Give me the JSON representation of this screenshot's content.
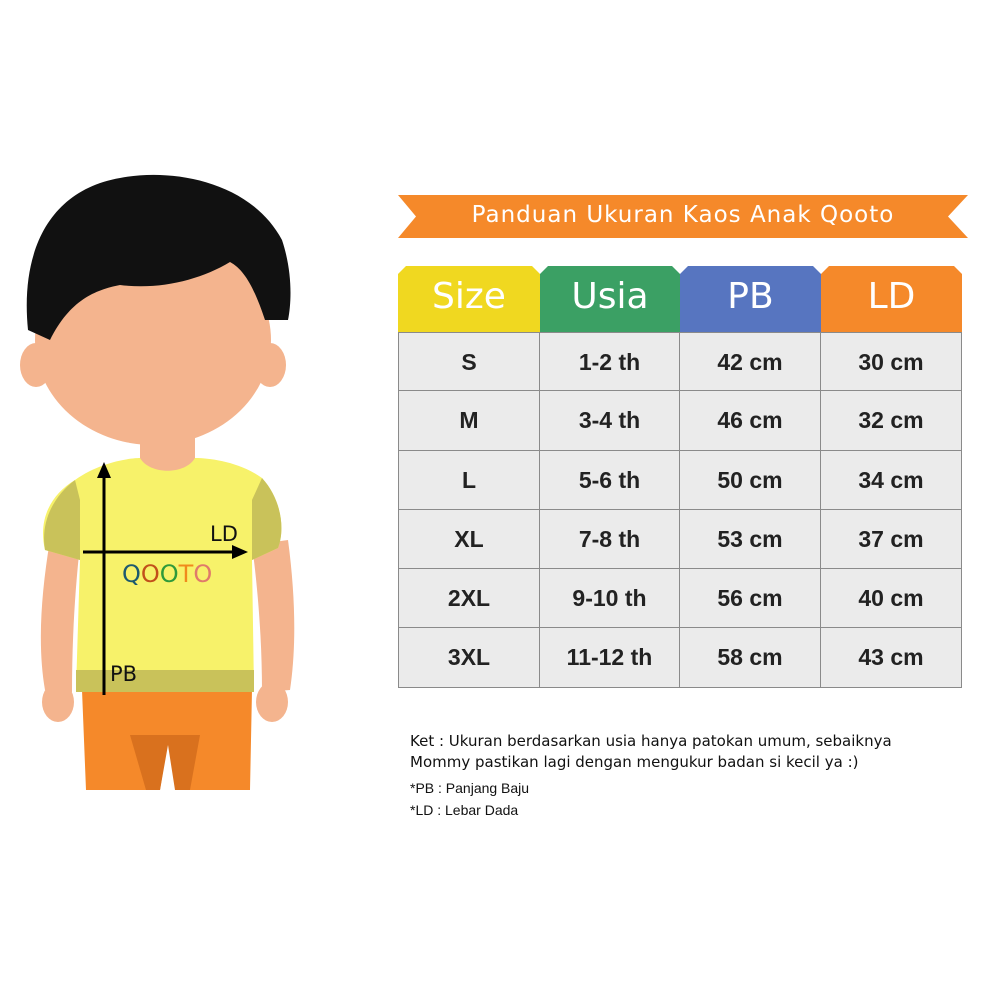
{
  "title": "Panduan Ukuran Kaos Anak Qooto",
  "illustration": {
    "ld_label": "LD",
    "pb_label": "PB",
    "logo_letters": [
      "Q",
      "O",
      "O",
      "T",
      "O"
    ],
    "logo_colors": [
      "#1d5a6e",
      "#c2501a",
      "#2f9a3a",
      "#f08a1c",
      "#e07a6a"
    ],
    "shirt_color": "#f7f26a",
    "shorts_color": "#f5892a"
  },
  "table": {
    "headers": [
      {
        "label": "Size",
        "color": "#f0d820"
      },
      {
        "label": "Usia",
        "color": "#3ba064"
      },
      {
        "label": "PB",
        "color": "#5775c0"
      },
      {
        "label": "LD",
        "color": "#f5892a"
      }
    ],
    "rows": [
      [
        "S",
        "1-2 th",
        "42 cm",
        "30 cm"
      ],
      [
        "M",
        "3-4 th",
        "46 cm",
        "32 cm"
      ],
      [
        "L",
        "5-6 th",
        "50 cm",
        "34 cm"
      ],
      [
        "XL",
        "7-8 th",
        "53 cm",
        "37 cm"
      ],
      [
        "2XL",
        "9-10 th",
        "56 cm",
        "40 cm"
      ],
      [
        "3XL",
        "11-12 th",
        "58 cm",
        "43 cm"
      ]
    ]
  },
  "notes": {
    "line1": "Ket : Ukuran berdasarkan usia hanya patokan umum, sebaiknya",
    "line2": "Mommy pastikan lagi dengan mengukur badan si kecil ya :)",
    "pb": "*PB : Panjang Baju",
    "ld": "*LD : Lebar Dada"
  },
  "banner_color": "#f5892a"
}
